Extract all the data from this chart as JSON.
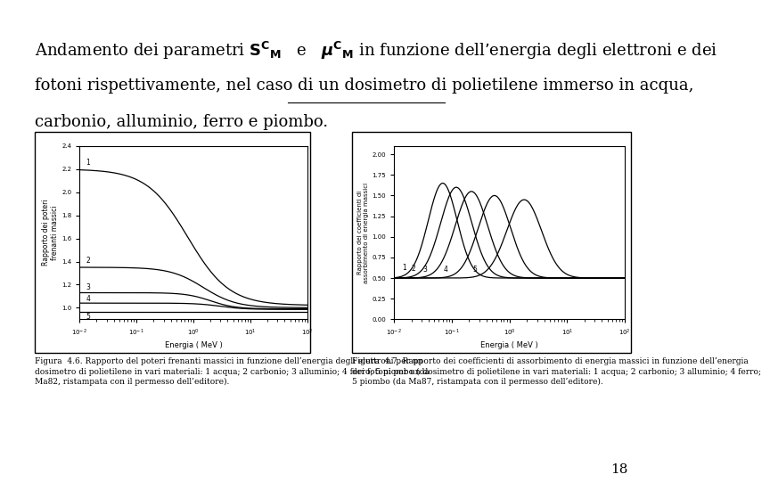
{
  "background_color": "#ffffff",
  "page_number": "18",
  "fig1_caption": "Figura  4.6. Rapporto del poteri frenanti massici in funzione dell’energia degli elettroni per un\ndosimetro di polietilene in vari materiali: 1 acqua; 2 carbonio; 3 alluminio; 4 ferro; 5 piombo (da\nMa82, ristampata con il permesso dell’editore).",
  "fig2_caption": "Figura  4.7. Rapporto dei coefficienti di assorbimento di energia massici in funzione dell’energia\ndei fotoni per un dosimetro di polietilene in vari materiali: 1 acqua; 2 carbonio; 3 alluminio; 4 ferro;\n5 piombo (da Ma87, ristampata con il permesso dell’editore).",
  "title_fontsize": 13,
  "caption_fontsize": 6.5,
  "page_num_fontsize": 11
}
